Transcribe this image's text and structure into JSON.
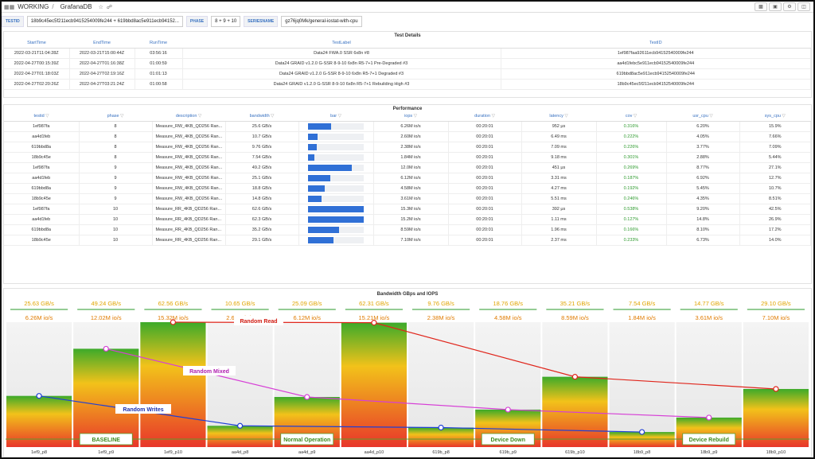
{
  "header": {
    "folder": "WORKING",
    "dashboard": "GrafanaDB",
    "separator": "/"
  },
  "variables": [
    {
      "label": "TESTID",
      "value": "18b9c45ec5f211ecb9415254009fe244 + 619bbd8ac5e911ecb94152..."
    },
    {
      "label": "PHASE",
      "value": "8 + 9 + 10"
    },
    {
      "label": "SERIESNAME",
      "value": "gz76jq0Mk/general-iostat-with-cpu"
    }
  ],
  "test_details": {
    "title": "Test Details",
    "columns": [
      "StartTime",
      "EndTime",
      "RunTime",
      "TestLabel",
      "TestID"
    ],
    "rows": [
      [
        "2022-03-21T11:04:28Z",
        "2022-03-21T15:00:44Z",
        "03:56:16",
        "Data24 FWA.0 SSR 6x8n #8",
        "1ef987faa92611ecb94152540009fe244"
      ],
      [
        "2022-04-27T00:15:39Z",
        "2022-04-27T01:16:38Z",
        "01:00:59",
        "Data24 GRAID v1.2.0 G-SSR 8-9-10 6x8n R5-7+1 Pre-Degraded #3",
        "aa4d1febc5e911ecb94152540009fe244"
      ],
      [
        "2022-04-27T01:18:03Z",
        "2022-04-27T02:19:16Z",
        "01:01:13",
        "Data24 GRAID v1.2.0 G-SSR 8-9-10 6x8n R5-7+1 Degraded #3",
        "619bbd8ac5e911ecb94152540009fe244"
      ],
      [
        "2022-04-27T02:20:26Z",
        "2022-04-27T03:21:24Z",
        "01:00:58",
        "Data24 GRAID v1.2.0 G-SSR 8-9-10 6x8n R5-7+1 Rebuilding High #3",
        "18b9c45ec5f211ecb94152540009fe244"
      ]
    ]
  },
  "performance": {
    "title": "Performance",
    "columns": [
      "testid",
      "phase",
      "description",
      "bandwidth",
      "bar",
      "iops",
      "duration",
      "latency",
      "cov",
      "usr_cpu",
      "sys_cpu"
    ],
    "rows": [
      {
        "testid": "1ef987fa",
        "phase": "8",
        "description": "Measure_RW_4KB_QD256 Ran...",
        "bandwidth": "25.6 GB/s",
        "bar": 0.41,
        "iops": "6.26M io/s",
        "duration": "00:20:01",
        "latency": "952 μs",
        "cov": "0.316%",
        "usr_cpu": "6.20%",
        "sys_cpu": "15.9%"
      },
      {
        "testid": "aa4d1feb",
        "phase": "8",
        "description": "Measure_RW_4KB_QD256 Ran...",
        "bandwidth": "10.7 GB/s",
        "bar": 0.17,
        "iops": "2.60M io/s",
        "duration": "00:20:01",
        "latency": "6.49 ms",
        "cov": "0.222%",
        "usr_cpu": "4.05%",
        "sys_cpu": "7.66%"
      },
      {
        "testid": "619bbd8a",
        "phase": "8",
        "description": "Measure_RW_4KB_QD256 Ran...",
        "bandwidth": "9.76 GB/s",
        "bar": 0.16,
        "iops": "2.38M io/s",
        "duration": "00:20:01",
        "latency": "7.09 ms",
        "cov": "0.226%",
        "usr_cpu": "3.77%",
        "sys_cpu": "7.09%"
      },
      {
        "testid": "18b9c45e",
        "phase": "8",
        "description": "Measure_RW_4KB_QD256 Ran...",
        "bandwidth": "7.54 GB/s",
        "bar": 0.12,
        "iops": "1.84M io/s",
        "duration": "00:20:01",
        "latency": "9.18 ms",
        "cov": "0.301%",
        "usr_cpu": "2.88%",
        "sys_cpu": "5.44%"
      },
      {
        "testid": "1ef987fa",
        "phase": "9",
        "description": "Measure_RW_4KB_QD256 Ran...",
        "bandwidth": "49.2 GB/s",
        "bar": 0.79,
        "iops": "12.0M io/s",
        "duration": "00:20:01",
        "latency": "451 μs",
        "cov": "0.269%",
        "usr_cpu": "8.77%",
        "sys_cpu": "27.1%"
      },
      {
        "testid": "aa4d1feb",
        "phase": "9",
        "description": "Measure_RW_4KB_QD256 Ran...",
        "bandwidth": "25.1 GB/s",
        "bar": 0.4,
        "iops": "6.12M io/s",
        "duration": "00:20:01",
        "latency": "3.31 ms",
        "cov": "0.187%",
        "usr_cpu": "6.92%",
        "sys_cpu": "12.7%"
      },
      {
        "testid": "619bbd8a",
        "phase": "9",
        "description": "Measure_RW_4KB_QD256 Ran...",
        "bandwidth": "18.8 GB/s",
        "bar": 0.3,
        "iops": "4.58M io/s",
        "duration": "00:20:01",
        "latency": "4.27 ms",
        "cov": "0.192%",
        "usr_cpu": "5.45%",
        "sys_cpu": "10.7%"
      },
      {
        "testid": "18b9c45e",
        "phase": "9",
        "description": "Measure_RW_4KB_QD256 Ran...",
        "bandwidth": "14.8 GB/s",
        "bar": 0.24,
        "iops": "3.61M io/s",
        "duration": "00:20:01",
        "latency": "5.51 ms",
        "cov": "0.246%",
        "usr_cpu": "4.35%",
        "sys_cpu": "8.51%"
      },
      {
        "testid": "1ef987fa",
        "phase": "10",
        "description": "Measure_RR_4KB_QD256 Ran...",
        "bandwidth": "62.6 GB/s",
        "bar": 1.0,
        "iops": "15.3M io/s",
        "duration": "00:20:01",
        "latency": "392 μs",
        "cov": "0.538%",
        "usr_cpu": "9.20%",
        "sys_cpu": "42.5%"
      },
      {
        "testid": "aa4d1feb",
        "phase": "10",
        "description": "Measure_RR_4KB_QD256 Ran...",
        "bandwidth": "62.3 GB/s",
        "bar": 0.995,
        "iops": "15.2M io/s",
        "duration": "00:20:01",
        "latency": "1.11 ms",
        "cov": "0.127%",
        "usr_cpu": "14.8%",
        "sys_cpu": "26.9%"
      },
      {
        "testid": "619bbd8a",
        "phase": "10",
        "description": "Measure_RR_4KB_QD256 Ran...",
        "bandwidth": "35.2 GB/s",
        "bar": 0.56,
        "iops": "8.59M io/s",
        "duration": "00:20:01",
        "latency": "1.96 ms",
        "cov": "0.166%",
        "usr_cpu": "8.10%",
        "sys_cpu": "17.2%"
      },
      {
        "testid": "18b9c45e",
        "phase": "10",
        "description": "Measure_RR_4KB_QD256 Ran...",
        "bandwidth": "29.1 GB/s",
        "bar": 0.46,
        "iops": "7.10M io/s",
        "duration": "00:20:01",
        "latency": "2.37 ms",
        "cov": "0.233%",
        "usr_cpu": "6.73%",
        "sys_cpu": "14.0%"
      }
    ]
  },
  "chart_data": {
    "type": "bar",
    "title": "Bandwidth GBps and IOPS",
    "categories": [
      "1ef9_p8",
      "1ef9_p9",
      "1ef9_p10",
      "aa4d_p8",
      "aa4d_p9",
      "aa4d_p10",
      "619b_p8",
      "619b_p9",
      "619b_p10",
      "18b9_p8",
      "18b9_p9",
      "18b9_p10"
    ],
    "bandwidth_labels": [
      "25.63 GB/s",
      "49.24 GB/s",
      "62.56 GB/s",
      "10.65 GB/s",
      "25.09 GB/s",
      "62.31 GB/s",
      "9.76 GB/s",
      "18.76 GB/s",
      "35.21 GB/s",
      "7.54 GB/s",
      "14.77 GB/s",
      "29.10 GB/s"
    ],
    "iops_labels": [
      "6.26M io/s",
      "12.02M io/s",
      "15.32M io/s",
      "2.60M io/s",
      "6.12M io/s",
      "15.21M io/s",
      "2.38M io/s",
      "4.58M io/s",
      "8.59M io/s",
      "1.84M io/s",
      "3.61M io/s",
      "7.10M io/s"
    ],
    "values": [
      25.63,
      49.24,
      62.56,
      10.65,
      25.09,
      62.31,
      9.76,
      18.76,
      35.21,
      7.54,
      14.77,
      29.1
    ],
    "ylim": [
      0,
      62.56
    ],
    "series": [
      {
        "name": "Random Writes",
        "color": "#1f3fd6",
        "points": [
          [
            0,
            25.63
          ],
          [
            3,
            10.65
          ],
          [
            6,
            9.76
          ],
          [
            9,
            7.54
          ]
        ]
      },
      {
        "name": "Random Mixed",
        "color": "#d63fd6",
        "points": [
          [
            1,
            49.24
          ],
          [
            4,
            25.09
          ],
          [
            7,
            18.76
          ],
          [
            10,
            14.77
          ]
        ]
      },
      {
        "name": "Random Read",
        "color": "#e0251b",
        "points": [
          [
            2,
            62.56
          ],
          [
            5,
            62.31
          ],
          [
            8,
            35.21
          ],
          [
            11,
            29.1
          ]
        ]
      }
    ],
    "annotations": [
      {
        "text": "BASELINE",
        "column": 1
      },
      {
        "text": "Normal Operation",
        "column": 4
      },
      {
        "text": "Device Down",
        "column": 7
      },
      {
        "text": "Device Rebuild",
        "column": 10
      }
    ],
    "colors": {
      "bw_label": "#e0a400",
      "iops_label": "#e07b00",
      "top": "#3caa2a",
      "mid": "#f2c21a",
      "bottom": "#e8362a"
    }
  }
}
